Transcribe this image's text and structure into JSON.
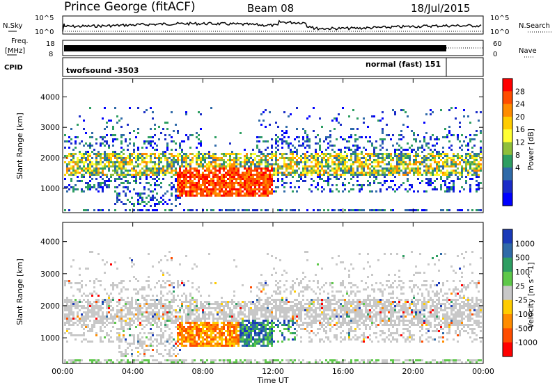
{
  "header": {
    "station": "Prince George (fitACF)",
    "beam": "Beam 08",
    "date": "18/Jul/2015"
  },
  "left_labels": {
    "nsky": "N.Sky",
    "freq_line1": "Freq.",
    "freq_line2": "[MHz]",
    "cpid": "CPID"
  },
  "right_labels": {
    "nsearch": "N.Search",
    "nave": "Nave"
  },
  "noise_axis": {
    "left_ticks": [
      "10^5",
      "10^0"
    ],
    "right_ticks": [
      "10^5",
      "10^0"
    ]
  },
  "freq_axis": {
    "left_ticks": [
      "18",
      "8"
    ],
    "right_ticks": [
      "60",
      "0"
    ]
  },
  "cpid": {
    "left_label": "twofsound -3503",
    "right_label": "normal (fast) 151"
  },
  "x_axis": {
    "label": "Time UT",
    "ticks": [
      "00:00",
      "04:00",
      "08:00",
      "12:00",
      "16:00",
      "20:00",
      "00:00"
    ]
  },
  "chart_data": [
    {
      "type": "heatmap",
      "panel": "power",
      "ylabel": "Slant Range [km]",
      "y_ticks": [
        "1000",
        "2000",
        "3000",
        "4000"
      ],
      "xlim": [
        0,
        24
      ],
      "ylim": [
        200,
        4600
      ],
      "colorbar": {
        "label": "Power [dB]",
        "ticks": [
          "28",
          "24",
          "20",
          "16",
          "12",
          "8",
          "4"
        ],
        "colors": [
          "#ff0000",
          "#ff4d00",
          "#ff8c00",
          "#ffcc00",
          "#ffff33",
          "#8fbf3a",
          "#2e9e62",
          "#2f6aa8",
          "#1a2cc8",
          "#0000ff"
        ]
      }
    },
    {
      "type": "heatmap",
      "panel": "velocity",
      "ylabel": "Slant Range [km]",
      "y_ticks": [
        "1000",
        "2000",
        "3000",
        "4000"
      ],
      "xlim": [
        0,
        24
      ],
      "ylim": [
        200,
        4600
      ],
      "colorbar": {
        "label": "Velocity [m s^-1]",
        "ticks": [
          "1000",
          "500",
          "100",
          "25",
          "-25",
          "-100",
          "-500",
          "-1000"
        ],
        "colors": [
          "#1a3ab8",
          "#2f6aa8",
          "#2e9e62",
          "#5ec84a",
          "#c8c8c8",
          "#ffcc00",
          "#ff8c00",
          "#ff4d00",
          "#ff0000"
        ]
      }
    }
  ]
}
